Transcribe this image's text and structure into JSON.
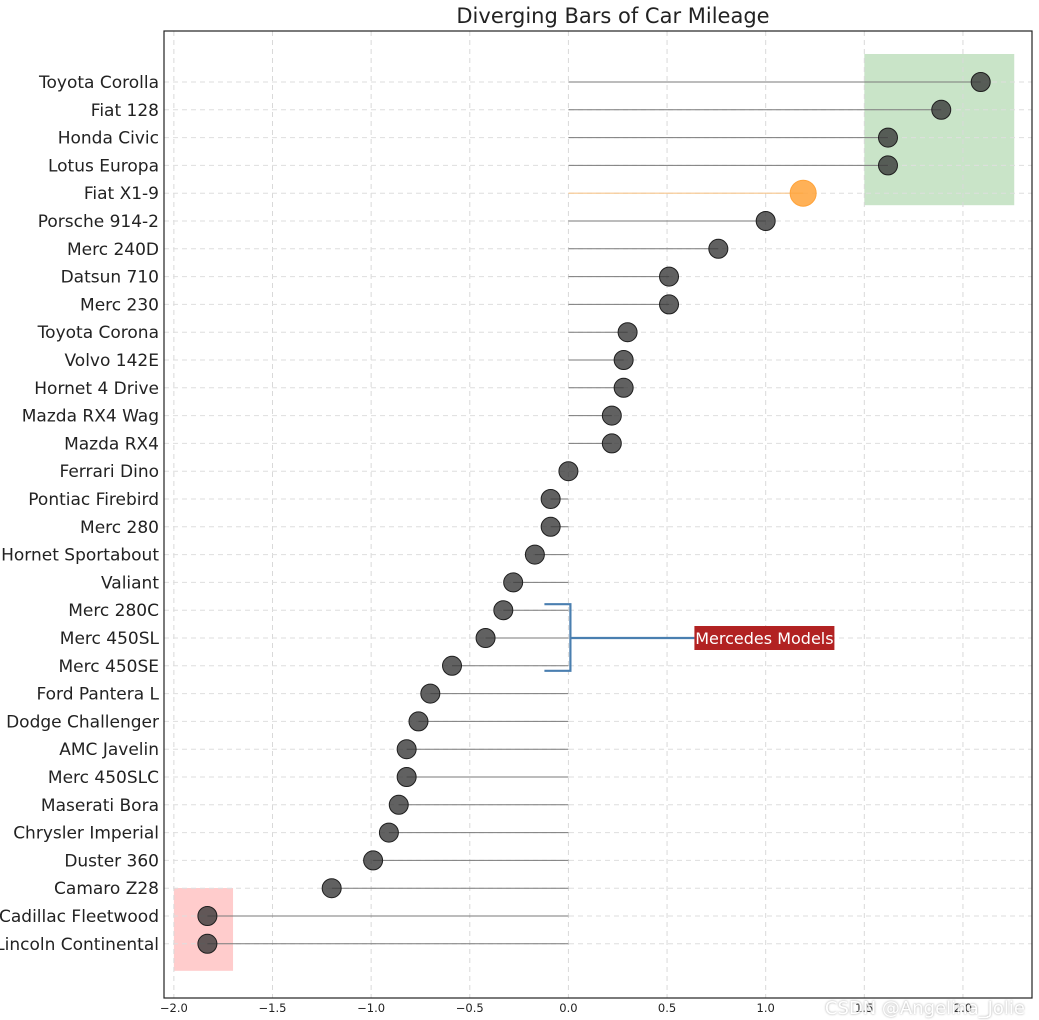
{
  "chart_data": {
    "type": "lollipop",
    "title": "Diverging Bars of Car Mileage",
    "xlabel": "",
    "ylabel": "",
    "xlim": [
      -2.05,
      2.35
    ],
    "xticks": [
      -2.0,
      -1.5,
      -1.0,
      -0.5,
      0.0,
      0.5,
      1.0,
      1.5,
      2.0
    ],
    "xtick_labels": [
      "−2.0",
      "−1.5",
      "−1.0",
      "−0.5",
      "0.0",
      "0.5",
      "1.0",
      "1.5",
      "2.0"
    ],
    "grid": true,
    "categories": [
      "Toyota Corolla",
      "Fiat 128",
      "Honda Civic",
      "Lotus Europa",
      "Fiat X1-9",
      "Porsche 914-2",
      "Merc 240D",
      "Datsun 710",
      "Merc 230",
      "Toyota Corona",
      "Volvo 142E",
      "Hornet 4 Drive",
      "Mazda RX4 Wag",
      "Mazda RX4",
      "Ferrari Dino",
      "Pontiac Firebird",
      "Merc 280",
      "Hornet Sportabout",
      "Valiant",
      "Merc 280C",
      "Merc 450SL",
      "Merc 450SE",
      "Ford Pantera L",
      "Dodge Challenger",
      "AMC Javelin",
      "Merc 450SLC",
      "Maserati Bora",
      "Chrysler Imperial",
      "Duster 360",
      "Camaro Z28",
      "Cadillac Fleetwood",
      "Lincoln Continental"
    ],
    "values": [
      2.09,
      1.89,
      1.62,
      1.62,
      1.19,
      1.0,
      0.76,
      0.51,
      0.51,
      0.3,
      0.28,
      0.28,
      0.22,
      0.22,
      0.0,
      -0.09,
      -0.09,
      -0.17,
      -0.28,
      -0.33,
      -0.42,
      -0.59,
      -0.7,
      -0.76,
      -0.82,
      -0.82,
      -0.86,
      -0.91,
      -0.99,
      -1.2,
      -1.83,
      -1.83
    ],
    "highlight": "Fiat X1-9",
    "colors": {
      "marker": "#3a3a3a",
      "line": "#7a7a7a",
      "highlight": "#ffa33a",
      "highlight_line": "#f7c58c",
      "green_region": "#c9e4c8",
      "red_region": "#ffcccc",
      "bracket": "#4a7fb0",
      "annotation_box": "#b22222"
    },
    "annotation": "Mercedes Models"
  },
  "watermark": "CSDN @Angelina_Jolie"
}
